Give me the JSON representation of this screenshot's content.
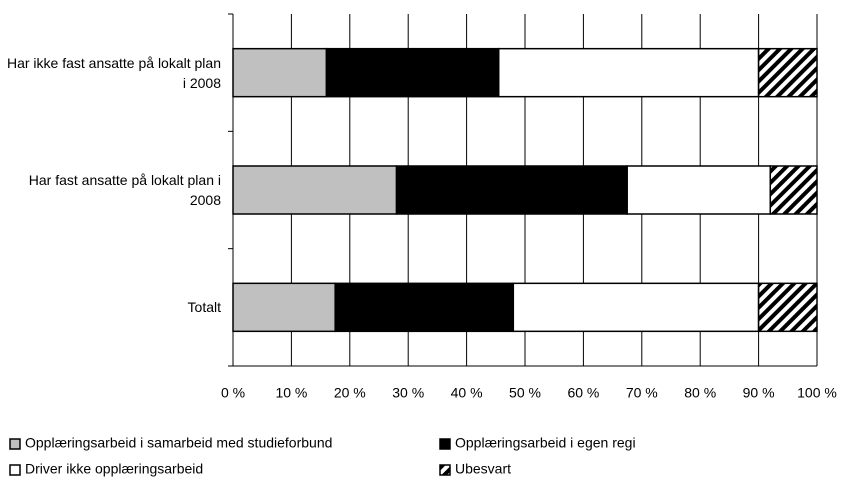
{
  "chart_data": {
    "type": "stacked-barh",
    "categories": [
      "Har ikke fast ansatte på lokalt plan i 2008",
      "Har fast ansatte på lokalt plan i 2008",
      "Totalt"
    ],
    "series": [
      {
        "name": "Opplæringsarbeid i samarbeid med studieforbund",
        "color": "#c0c0c0",
        "values": [
          16,
          28,
          17.5
        ]
      },
      {
        "name": "Opplæringsarbeid i egen regi",
        "color": "#000000",
        "values": [
          29.5,
          39.5,
          30.5
        ]
      },
      {
        "name": "Driver ikke opplæringsarbeid",
        "color": "#ffffff",
        "values": [
          44.5,
          24.5,
          42
        ]
      },
      {
        "name": "Ubesvart",
        "color": "#000000",
        "pattern": "diagonal-hatch",
        "values": [
          10,
          8,
          10
        ]
      }
    ],
    "xlim": [
      0,
      100
    ],
    "xticks": [
      {
        "value": 0,
        "label": "0 %"
      },
      {
        "value": 10,
        "label": "10 %"
      },
      {
        "value": 20,
        "label": "20 %"
      },
      {
        "value": 30,
        "label": "30 %"
      },
      {
        "value": 40,
        "label": "40 %"
      },
      {
        "value": 50,
        "label": "50 %"
      },
      {
        "value": 60,
        "label": "60 %"
      },
      {
        "value": 70,
        "label": "70 %"
      },
      {
        "value": 80,
        "label": "80 %"
      },
      {
        "value": 90,
        "label": "90 %"
      },
      {
        "value": 100,
        "label": "100 %"
      }
    ],
    "grid": true
  }
}
